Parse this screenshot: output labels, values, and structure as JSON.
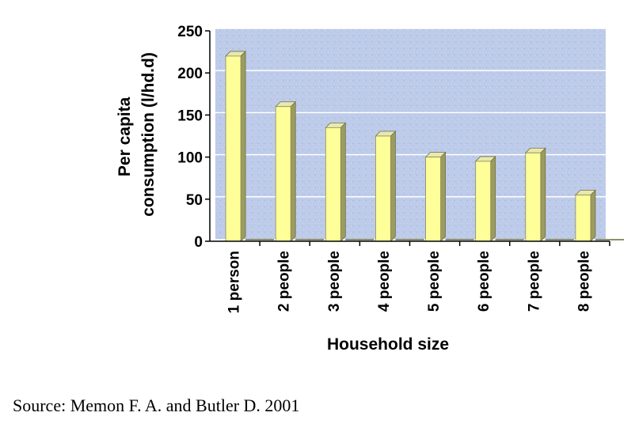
{
  "chart_data": {
    "type": "bar",
    "categories": [
      "1 person",
      "2 people",
      "3 people",
      "4 people",
      "5 people",
      "6 people",
      "7 people",
      "8 people"
    ],
    "values": [
      220,
      160,
      135,
      125,
      100,
      95,
      105,
      55
    ],
    "xlabel": "Household size",
    "ylabel_lines": [
      "Per capita",
      "consumption (l/hd.d)"
    ],
    "ylim": [
      0,
      250
    ],
    "yticks": [
      "0",
      "50",
      "100",
      "150",
      "200",
      "250"
    ],
    "grid": true,
    "colors": {
      "bar_face": "#ffff99",
      "bar_side": "#9c9c60",
      "bar_top": "#e8e8b0",
      "grid": "#ffffff",
      "background": "#b8c8e8"
    }
  },
  "source_text": "Source:  Memon F. A. and Butler D. 2001"
}
